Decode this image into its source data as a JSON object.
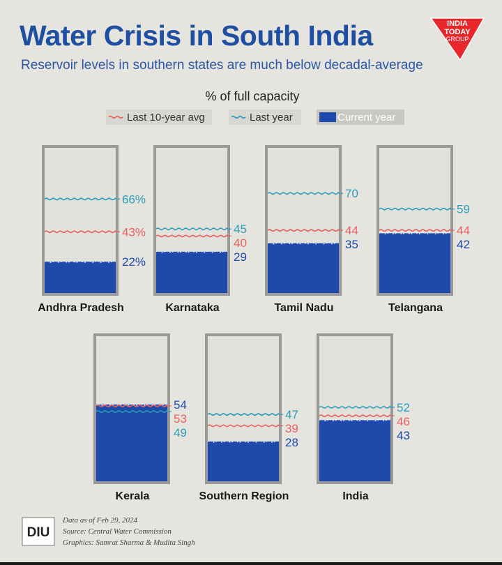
{
  "header": {
    "title": "Water Crisis in South India",
    "subtitle": "Reservoir levels in southern states are much below decadal-average"
  },
  "logo": {
    "line1": "INDIA",
    "line2": "TODAY",
    "line3": "GROUP"
  },
  "colors": {
    "avg": "#e8605c",
    "last": "#2a9db8",
    "current": "#1f4aab",
    "outline": "#9a9a9a",
    "water": "#1f4aab"
  },
  "chart_data": {
    "type": "bar",
    "title": "% of full capacity",
    "categories": [
      "Andhra Pradesh",
      "Karnataka",
      "Tamil Nadu",
      "Telangana",
      "Kerala",
      "Southern Region",
      "India"
    ],
    "series": [
      {
        "name": "Last 10-year avg",
        "values": [
          43,
          40,
          44,
          44,
          53,
          39,
          46
        ]
      },
      {
        "name": "Last year",
        "values": [
          66,
          45,
          70,
          59,
          49,
          47,
          52
        ]
      },
      {
        "name": "Current year",
        "values": [
          22,
          29,
          35,
          42,
          54,
          28,
          43
        ]
      }
    ],
    "value_labels": {
      "Last 10-year avg": [
        "43%",
        "40",
        "44",
        "44",
        "53",
        "39",
        "46"
      ],
      "Last year": [
        "66%",
        "45",
        "70",
        "59",
        "49",
        "47",
        "52"
      ],
      "Current year": [
        "22%",
        "29",
        "35",
        "42",
        "54",
        "28",
        "43"
      ]
    },
    "ylim": [
      0,
      100
    ],
    "legend_position": "top"
  },
  "footer": {
    "logo_text": "DIU",
    "date_line": "Data as of Feb 29, 2024",
    "source_line": "Source: Central Water Commission",
    "graphics_line": "Graphics: Samrat Sharma & Mudita Singh"
  }
}
